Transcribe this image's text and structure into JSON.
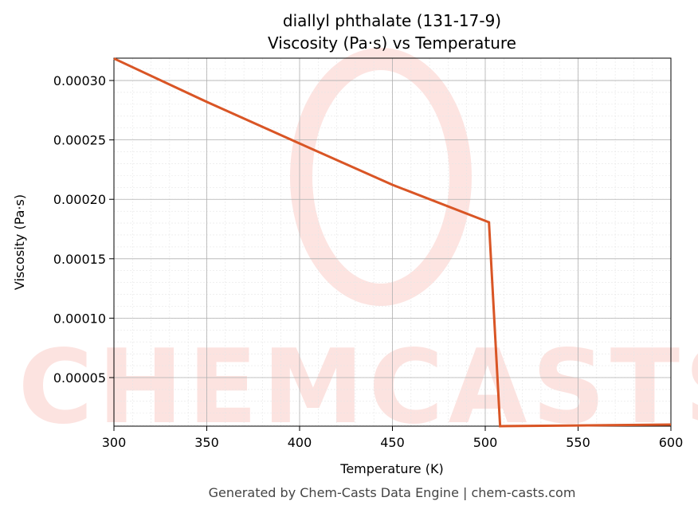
{
  "chart_data": {
    "type": "line",
    "title": "diallyl phthalate (131-17-9)",
    "subtitle": "Viscosity (Pa·s) vs Temperature",
    "x_label": "Temperature (K)",
    "y_label": "Viscosity (Pa·s)",
    "footer": "Generated by Chem-Casts Data Engine | chem-casts.com",
    "x": [
      300,
      350,
      400,
      450,
      502,
      508,
      550,
      600
    ],
    "series": [
      {
        "name": "Viscosity",
        "color": "#d95525",
        "values": [
          0.0003185,
          0.000282,
          0.000247,
          0.0002122,
          0.0001807,
          9.1e-06,
          9.7e-06,
          1.04e-05
        ]
      }
    ],
    "xlim": [
      300,
      600
    ],
    "ylim": [
      9.1e-06,
      0.0003188
    ],
    "xticks": [
      300,
      350,
      400,
      450,
      500,
      550,
      600
    ],
    "yticks": [
      {
        "value": 5e-05,
        "label": "0.00005"
      },
      {
        "value": 0.0001,
        "label": "0.00010"
      },
      {
        "value": 0.00015,
        "label": "0.00015"
      },
      {
        "value": 0.0002,
        "label": "0.00020"
      },
      {
        "value": 0.00025,
        "label": "0.00025"
      },
      {
        "value": 0.0003,
        "label": "0.00030"
      }
    ],
    "grid": true
  }
}
